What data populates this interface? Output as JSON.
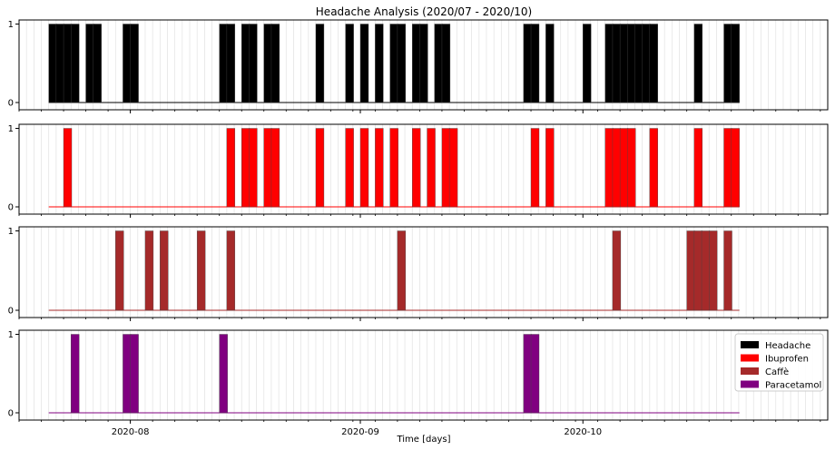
{
  "chart_data": {
    "type": "bar",
    "title": "Headache Analysis (2020/07 - 2020/10)",
    "xlabel": "Time [days]",
    "ylabel": "",
    "ylim": [
      0,
      1
    ],
    "yticks": [
      "0",
      "1"
    ],
    "x_tick_labels": [
      {
        "label": "2020-08",
        "date": "2020-08-01"
      },
      {
        "label": "2020-09",
        "date": "2020-09-01"
      },
      {
        "label": "2020-10",
        "date": "2020-10-01"
      }
    ],
    "x_range": [
      "2020-07-17",
      "2020-11-03"
    ],
    "series_range": [
      "2020-07-21",
      "2020-10-21"
    ],
    "grid": "vertical minor (daily)",
    "legend_placement": "right",
    "series": [
      {
        "name": "Headache",
        "color": "#000000",
        "dates": [
          "2020-07-21",
          "2020-07-22",
          "2020-07-23",
          "2020-07-24",
          "2020-07-26",
          "2020-07-27",
          "2020-07-31",
          "2020-08-01",
          "2020-08-13",
          "2020-08-14",
          "2020-08-16",
          "2020-08-17",
          "2020-08-19",
          "2020-08-20",
          "2020-08-26",
          "2020-08-30",
          "2020-09-01",
          "2020-09-03",
          "2020-09-05",
          "2020-09-06",
          "2020-09-08",
          "2020-09-09",
          "2020-09-11",
          "2020-09-12",
          "2020-09-23",
          "2020-09-24",
          "2020-09-26",
          "2020-10-01",
          "2020-10-04",
          "2020-10-05",
          "2020-10-06",
          "2020-10-07",
          "2020-10-08",
          "2020-10-09",
          "2020-10-10",
          "2020-10-16",
          "2020-10-20",
          "2020-10-21"
        ]
      },
      {
        "name": "Ibuprofen",
        "color": "#ff0000",
        "dates": [
          "2020-07-23",
          "2020-08-14",
          "2020-08-16",
          "2020-08-17",
          "2020-08-19",
          "2020-08-20",
          "2020-08-26",
          "2020-08-30",
          "2020-09-01",
          "2020-09-03",
          "2020-09-05",
          "2020-09-08",
          "2020-09-10",
          "2020-09-12",
          "2020-09-13",
          "2020-09-24",
          "2020-09-26",
          "2020-10-04",
          "2020-10-05",
          "2020-10-06",
          "2020-10-07",
          "2020-10-10",
          "2020-10-16",
          "2020-10-20",
          "2020-10-21"
        ]
      },
      {
        "name": "Caffè",
        "color": "#a52a2a",
        "dates": [
          "2020-07-30",
          "2020-08-03",
          "2020-08-05",
          "2020-08-10",
          "2020-08-14",
          "2020-09-06",
          "2020-10-05",
          "2020-10-15",
          "2020-10-16",
          "2020-10-17",
          "2020-10-18",
          "2020-10-20"
        ]
      },
      {
        "name": "Paracetamol",
        "color": "#800080",
        "dates": [
          "2020-07-24",
          "2020-07-31",
          "2020-08-01",
          "2020-08-13",
          "2020-09-23",
          "2020-09-24"
        ]
      }
    ]
  }
}
